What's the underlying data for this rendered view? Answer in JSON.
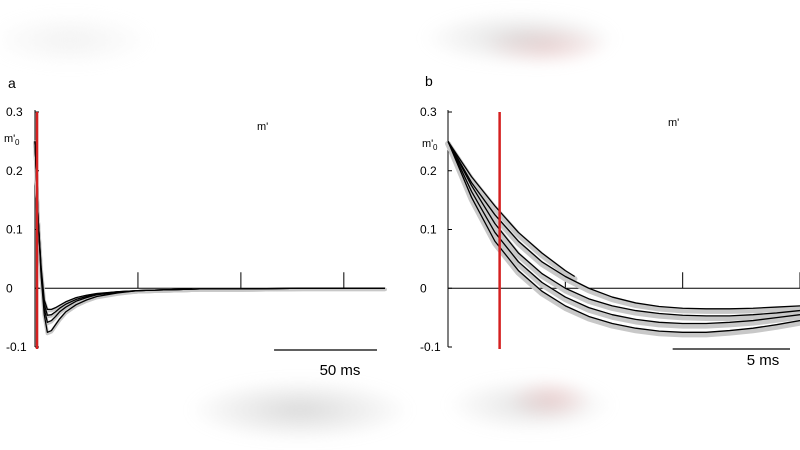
{
  "colors": {
    "curve": "#000000",
    "band": "#c8c8c8",
    "marker": "#d42020",
    "axis": "#000000"
  },
  "chart_data": [
    {
      "type": "line",
      "panel_label": "a",
      "series_label": "m'",
      "ylabel": "m'",
      "ylabel_sub": "0",
      "ylim": [
        -0.1,
        0.3
      ],
      "yticks": [
        0.3,
        0.2,
        0.1,
        0,
        -0.1
      ],
      "ytick_labels": [
        "0.3",
        "0.2",
        "0.1",
        "0",
        "-0.1"
      ],
      "xlim": [
        0,
        170
      ],
      "xticks": [
        50,
        100,
        150
      ],
      "marker_x": 1,
      "scalebar": {
        "length": 50,
        "label": "50 ms"
      },
      "series": [
        {
          "x": [
            0,
            1.5,
            3,
            4.5,
            6,
            8,
            10,
            12,
            15,
            20,
            25,
            30,
            40,
            50,
            60,
            70,
            80,
            100,
            130,
            150,
            170
          ],
          "y": [
            0.25,
            0.12,
            0.02,
            -0.045,
            -0.075,
            -0.072,
            -0.062,
            -0.052,
            -0.04,
            -0.028,
            -0.02,
            -0.014,
            -0.008,
            -0.004,
            -0.003,
            -0.002,
            -0.001,
            -0.001,
            0,
            0,
            0
          ]
        },
        {
          "x": [
            0,
            1.5,
            3,
            4.5,
            6,
            8,
            10,
            12,
            15,
            20,
            25,
            30,
            40,
            50,
            60,
            70,
            80,
            100,
            130,
            150,
            170
          ],
          "y": [
            0.25,
            0.12,
            0.025,
            -0.035,
            -0.058,
            -0.055,
            -0.048,
            -0.04,
            -0.032,
            -0.022,
            -0.016,
            -0.011,
            -0.007,
            -0.004,
            -0.003,
            -0.002,
            -0.001,
            -0.001,
            0,
            0,
            0
          ]
        },
        {
          "x": [
            0,
            1.5,
            3,
            4.5,
            6,
            8,
            10,
            12,
            15,
            20,
            25,
            30,
            40,
            50,
            60,
            70,
            80,
            100,
            130,
            150,
            170
          ],
          "y": [
            0.25,
            0.12,
            0.03,
            -0.027,
            -0.046,
            -0.045,
            -0.04,
            -0.034,
            -0.027,
            -0.019,
            -0.014,
            -0.01,
            -0.006,
            -0.004,
            -0.003,
            -0.002,
            -0.001,
            -0.001,
            0,
            0,
            0
          ]
        },
        {
          "x": [
            0,
            1.5,
            3,
            4.5,
            6,
            8,
            10,
            12,
            15,
            20,
            25,
            30,
            40,
            50,
            60,
            70,
            80,
            100,
            130,
            150,
            170
          ],
          "y": [
            0.25,
            0.12,
            0.035,
            -0.02,
            -0.036,
            -0.036,
            -0.033,
            -0.029,
            -0.023,
            -0.016,
            -0.012,
            -0.009,
            -0.006,
            -0.004,
            -0.003,
            -0.002,
            -0.001,
            -0.001,
            0,
            0,
            0
          ]
        }
      ]
    },
    {
      "type": "line",
      "panel_label": "b",
      "series_label": "m'",
      "ylabel": "m'",
      "ylabel_sub": "0",
      "ylim": [
        -0.1,
        0.3
      ],
      "yticks": [
        0.3,
        0.2,
        0.1,
        0,
        -0.1
      ],
      "ytick_labels": [
        "0.3",
        "0.2",
        "0.1",
        "0",
        "-0.1"
      ],
      "xlim": [
        0,
        15
      ],
      "xticks": [
        5,
        10,
        15
      ],
      "marker_x": 2.2,
      "scalebar": {
        "length": 5,
        "label": "5 ms"
      },
      "series": [
        {
          "x": [
            0,
            1,
            2,
            3,
            4,
            5,
            5.4
          ],
          "y": [
            0.25,
            0.19,
            0.14,
            0.095,
            0.06,
            0.03,
            0.02
          ]
        },
        {
          "x": [
            0,
            1,
            2,
            3,
            4,
            5,
            6,
            7,
            8,
            9,
            10,
            11,
            12,
            13,
            14,
            15
          ],
          "y": [
            0.25,
            0.18,
            0.125,
            0.08,
            0.045,
            0.02,
            0.0,
            -0.015,
            -0.025,
            -0.031,
            -0.034,
            -0.035,
            -0.035,
            -0.034,
            -0.032,
            -0.03
          ]
        },
        {
          "x": [
            0,
            1,
            2,
            3,
            4,
            5,
            6,
            7,
            8,
            9,
            10,
            11,
            12,
            13,
            14,
            15
          ],
          "y": [
            0.25,
            0.175,
            0.11,
            0.06,
            0.025,
            0.0,
            -0.018,
            -0.03,
            -0.038,
            -0.043,
            -0.046,
            -0.047,
            -0.047,
            -0.045,
            -0.042,
            -0.038
          ]
        },
        {
          "x": [
            0,
            1,
            2,
            3,
            4,
            5,
            6,
            7,
            8,
            9,
            10,
            11,
            12,
            13,
            14,
            15
          ],
          "y": [
            0.25,
            0.165,
            0.095,
            0.045,
            0.01,
            -0.015,
            -0.033,
            -0.045,
            -0.053,
            -0.058,
            -0.06,
            -0.06,
            -0.058,
            -0.055,
            -0.05,
            -0.045
          ]
        },
        {
          "x": [
            0,
            1,
            2,
            3,
            4,
            5,
            6,
            7,
            8,
            9,
            10,
            11,
            12,
            13,
            14,
            15
          ],
          "y": [
            0.25,
            0.155,
            0.08,
            0.03,
            -0.005,
            -0.03,
            -0.048,
            -0.06,
            -0.068,
            -0.073,
            -0.075,
            -0.075,
            -0.072,
            -0.068,
            -0.062,
            -0.055
          ]
        }
      ]
    }
  ]
}
